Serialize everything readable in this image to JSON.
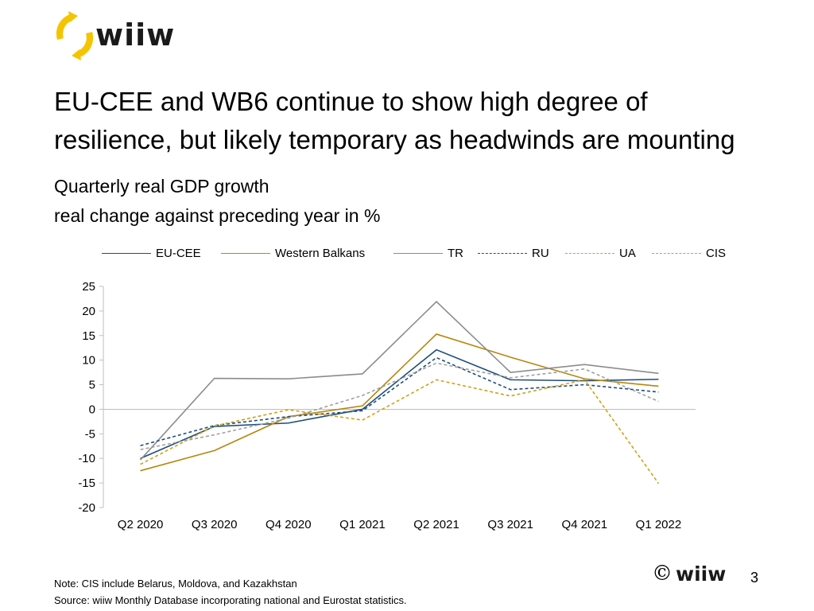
{
  "brand": {
    "logo_text": "wiiw",
    "accent_color": "#F5C400"
  },
  "slide": {
    "title_line1": "EU-CEE and WB6 continue to show high degree of",
    "title_line2": "resilience, but likely temporary as headwinds are mounting",
    "subtitle_line1": "Quarterly real GDP growth",
    "subtitle_line2": "real change against preceding year in %",
    "note": "Note: CIS include Belarus, Moldova, and Kazakhstan",
    "source": "Source: wiiw Monthly Database incorporating national and Eurostat statistics.",
    "footer_copyright": "©",
    "footer_logo_text": "wiiw",
    "page_number": "3"
  },
  "chart_data": {
    "type": "line",
    "title": "",
    "xlabel": "",
    "ylabel": "",
    "ylim": [
      -20,
      25
    ],
    "yticks": [
      -20,
      -15,
      -10,
      -5,
      0,
      5,
      10,
      15,
      20,
      25
    ],
    "grid": false,
    "legend_position": "top",
    "categories": [
      "Q2 2020",
      "Q3 2020",
      "Q4 2020",
      "Q1 2021",
      "Q2 2021",
      "Q3 2021",
      "Q4 2021",
      "Q1 2022"
    ],
    "series": [
      {
        "name": "EU-CEE",
        "color": "#1F4E79",
        "dash": "solid",
        "values": [
          -10.0,
          -3.5,
          -2.8,
          0.0,
          12.1,
          6.0,
          5.8,
          6.1
        ]
      },
      {
        "name": "Western Balkans",
        "color": "#B8860B",
        "dash": "solid",
        "values": [
          -12.5,
          -8.4,
          -1.5,
          0.7,
          15.3,
          10.6,
          6.2,
          4.7
        ]
      },
      {
        "name": "TR",
        "color": "#8C8C8C",
        "dash": "solid",
        "values": [
          -10.3,
          6.3,
          6.2,
          7.2,
          21.9,
          7.5,
          9.1,
          7.3
        ]
      },
      {
        "name": "RU",
        "color": "#1F4E79",
        "dash": "dashed",
        "values": [
          -7.4,
          -3.3,
          -1.5,
          -0.3,
          10.5,
          4.0,
          5.0,
          3.5
        ]
      },
      {
        "name": "UA",
        "color": "#D4A017",
        "dash": "dashed",
        "values": [
          -11.2,
          -3.4,
          -0.1,
          -2.2,
          6.0,
          2.7,
          6.0,
          -15.1
        ]
      },
      {
        "name": "CIS",
        "color": "#A0A0A0",
        "dash": "dashed",
        "values": [
          -8.2,
          -5.2,
          -1.8,
          2.8,
          9.4,
          6.4,
          8.2,
          1.6
        ]
      }
    ]
  }
}
